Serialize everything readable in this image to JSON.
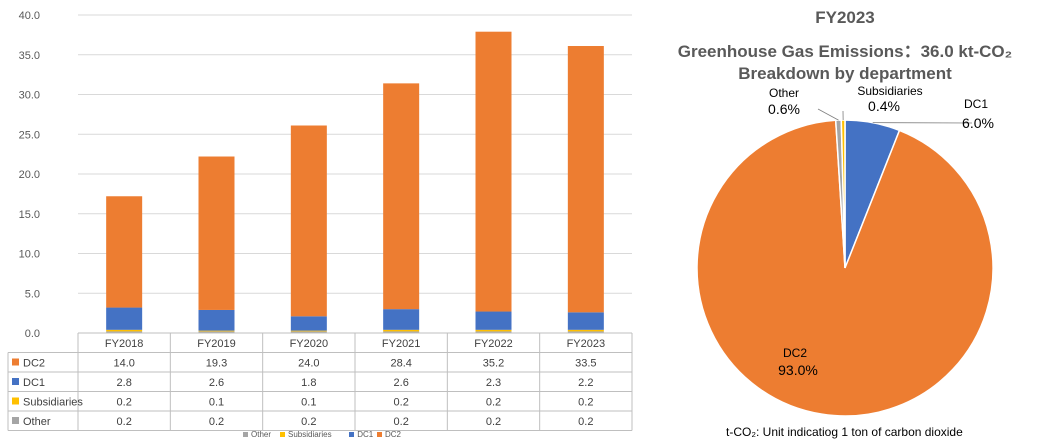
{
  "chart_data": [
    {
      "type": "bar",
      "stacked": true,
      "categories": [
        "FY2018",
        "FY2019",
        "FY2020",
        "FY2021",
        "FY2022",
        "FY2023"
      ],
      "series": [
        {
          "name": "Other",
          "color": "#a5a5a5",
          "values": [
            0.2,
            0.2,
            0.2,
            0.2,
            0.2,
            0.2
          ]
        },
        {
          "name": "Subsidiaries",
          "color": "#ffc000",
          "values": [
            0.2,
            0.1,
            0.1,
            0.2,
            0.2,
            0.2
          ]
        },
        {
          "name": "DC1",
          "color": "#4472c4",
          "values": [
            2.8,
            2.6,
            1.8,
            2.6,
            2.3,
            2.2
          ]
        },
        {
          "name": "DC2",
          "color": "#ed7d31",
          "values": [
            14.0,
            19.3,
            24.0,
            28.4,
            35.2,
            33.5
          ]
        }
      ],
      "table_order": [
        "DC2",
        "DC1",
        "Subsidiaries",
        "Other"
      ],
      "table_values": {
        "DC2": [
          "14.0",
          "19.3",
          "24.0",
          "28.4",
          "35.2",
          "33.5"
        ],
        "DC1": [
          "2.8",
          "2.6",
          "1.8",
          "2.6",
          "2.3",
          "2.2"
        ],
        "Subsidiaries": [
          "0.2",
          "0.1",
          "0.1",
          "0.2",
          "0.2",
          "0.2"
        ],
        "Other": [
          "0.2",
          "0.2",
          "0.2",
          "0.2",
          "0.2",
          "0.2"
        ]
      },
      "ylim": [
        0,
        40
      ],
      "yticks": [
        "0.0",
        "5.0",
        "10.0",
        "15.0",
        "20.0",
        "25.0",
        "30.0",
        "35.0",
        "40.0"
      ],
      "grid": true,
      "legend_position": "bottom"
    },
    {
      "type": "pie",
      "title": "FY2023",
      "subtitle": "Greenhouse Gas Emissions：36.0  kt-CO₂",
      "subtitle2": "Breakdown by department",
      "slices": [
        {
          "name": "DC1",
          "value": 6.0,
          "label": "6.0%",
          "color": "#4472c4"
        },
        {
          "name": "DC2",
          "value": 93.0,
          "label": "93.0%",
          "color": "#ed7d31"
        },
        {
          "name": "Other",
          "value": 0.6,
          "label": "0.6%",
          "color": "#a5a5a5"
        },
        {
          "name": "Subsidiaries",
          "value": 0.4,
          "label": "0.4%",
          "color": "#ffc000"
        }
      ]
    }
  ],
  "footnote": "t-CO₂: Unit indicatiog 1 ton of carbon dioxide"
}
